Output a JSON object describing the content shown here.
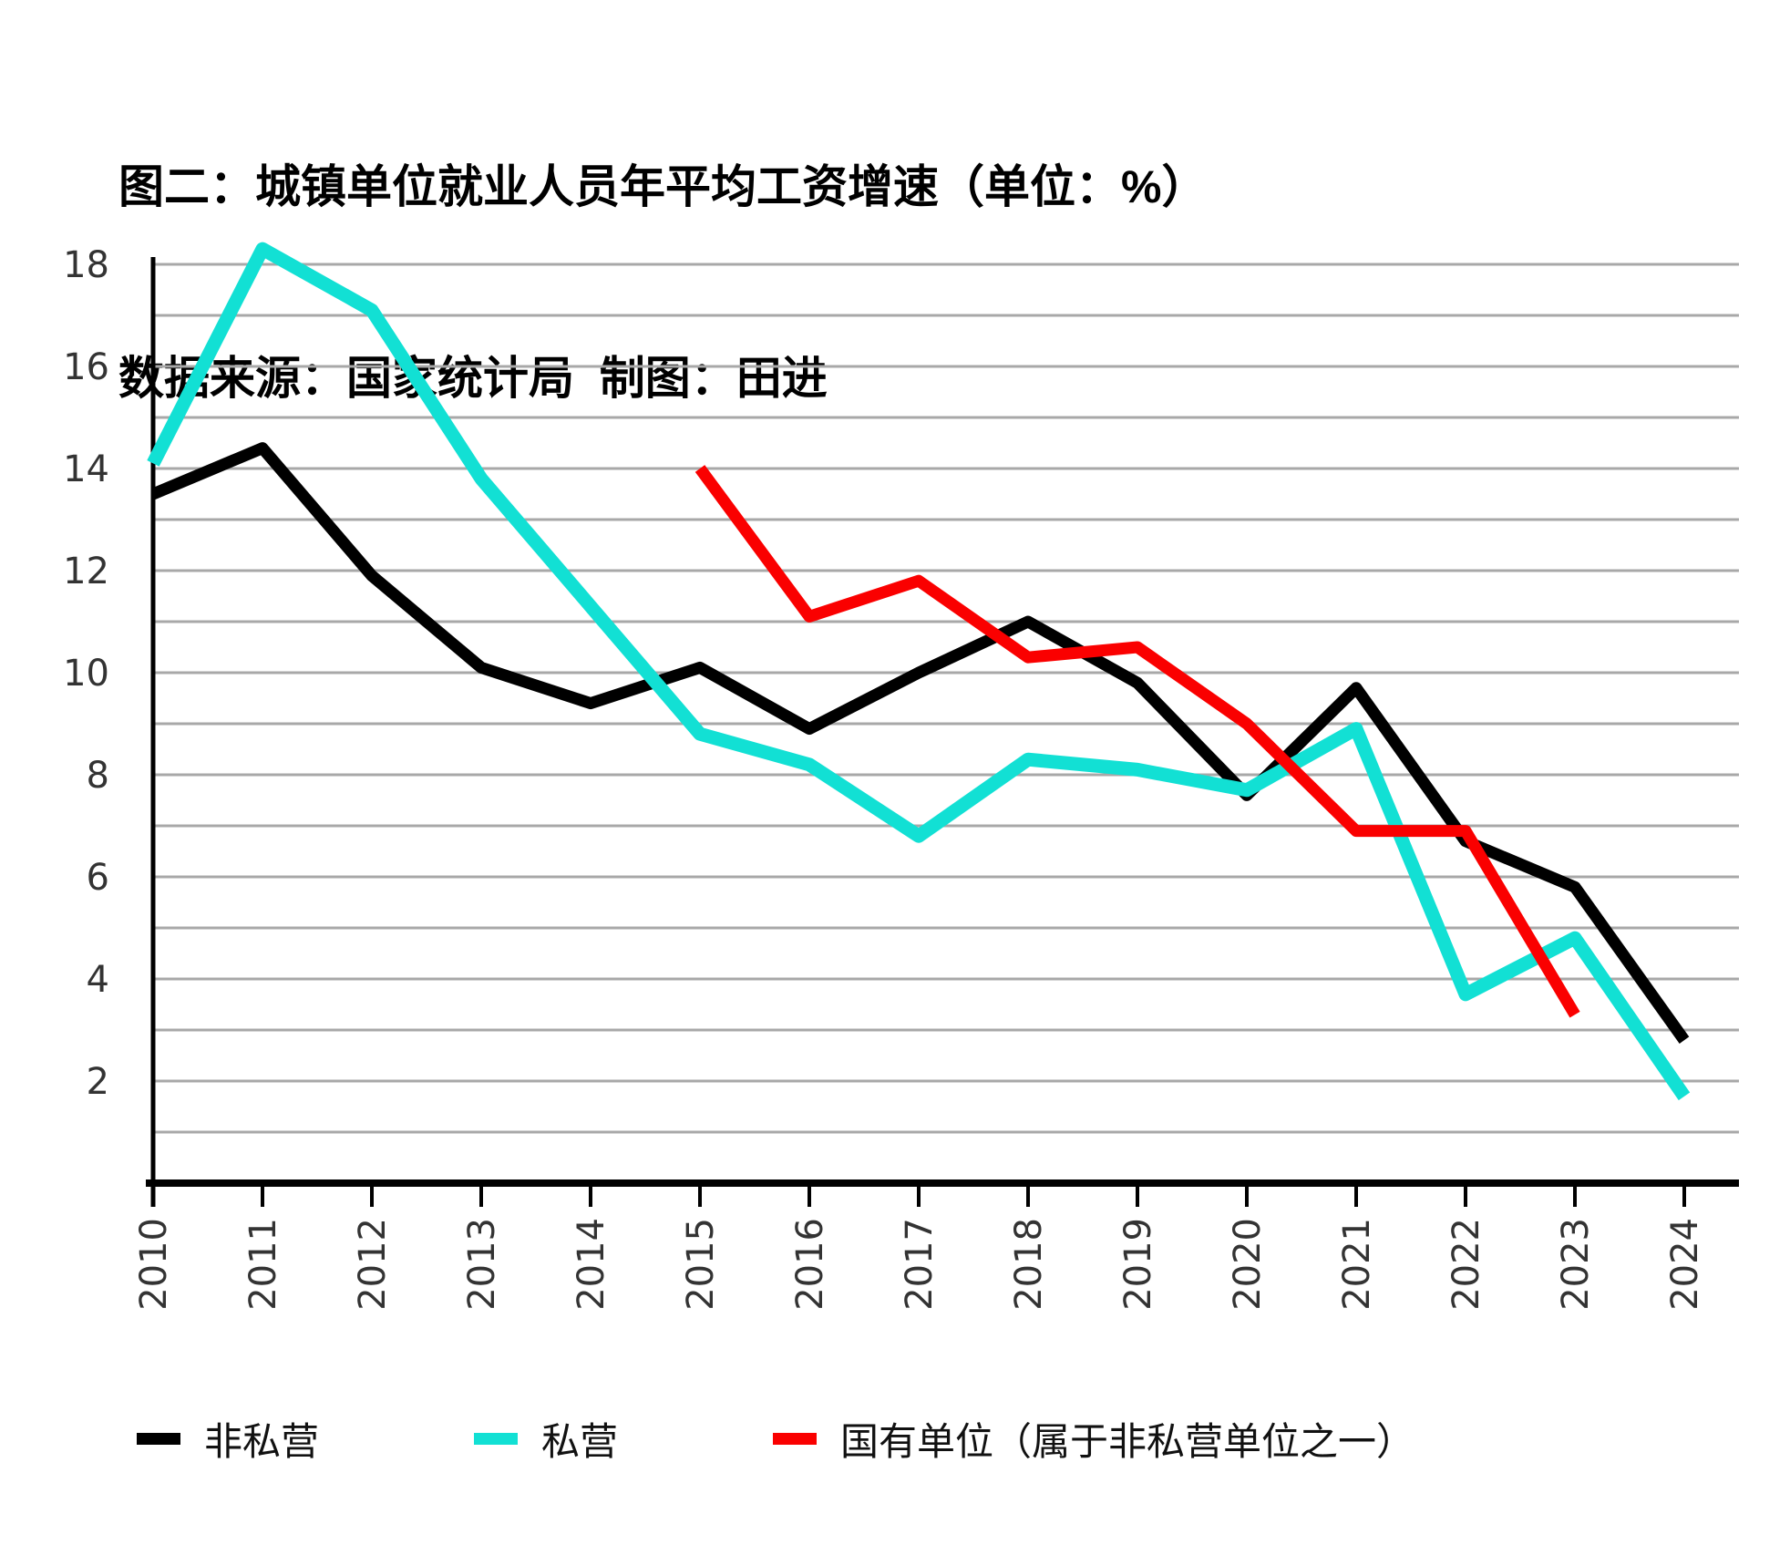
{
  "title": "图二：城镇单位就业人员年平均工资增速（单位：%）",
  "subtitle": "数据来源：国家统计局  制图：田进",
  "legend": {
    "items": [
      {
        "label": "非私营",
        "color": "#000000"
      },
      {
        "label": "私营",
        "color": "#12E0D4"
      },
      {
        "label": "国有单位（属于非私营单位之一）",
        "color": "#FA0000"
      }
    ]
  },
  "colors": {
    "background": "#ffffff",
    "grid": "#a8a8a8",
    "axis": "#000000",
    "tick_label": "#333333",
    "black_series": "#000000",
    "cyan_series": "#12E0D4",
    "red_series": "#FA0000"
  },
  "chart_data": {
    "type": "line",
    "title": "图二：城镇单位就业人员年平均工资增速（单位：%）",
    "source_note": "数据来源：国家统计局  制图：田进",
    "x": [
      2010,
      2011,
      2012,
      2013,
      2014,
      2015,
      2016,
      2017,
      2018,
      2019,
      2020,
      2021,
      2022,
      2023,
      2024
    ],
    "series": [
      {
        "name": "非私营",
        "color": "#000000",
        "values": [
          13.5,
          14.4,
          11.9,
          10.1,
          9.4,
          10.1,
          8.9,
          10.0,
          11.0,
          9.8,
          7.6,
          9.7,
          6.7,
          5.8,
          2.8
        ]
      },
      {
        "name": "私营",
        "color": "#12E0D4",
        "values": [
          14.1,
          18.3,
          17.1,
          13.8,
          11.3,
          8.8,
          8.2,
          6.8,
          8.3,
          8.1,
          7.7,
          8.9,
          3.7,
          4.8,
          1.7
        ]
      },
      {
        "name": "国有单位（属于非私营单位之一）",
        "color": "#FA0000",
        "values": [
          null,
          null,
          null,
          null,
          null,
          14.0,
          11.1,
          11.8,
          10.3,
          10.5,
          9.0,
          6.9,
          6.9,
          3.3,
          null
        ]
      }
    ],
    "xlabel": "",
    "ylabel": "",
    "ylim": [
      0,
      18
    ],
    "grid_step": 1,
    "y_tick_labels": [
      "2",
      "4",
      "6",
      "8",
      "10",
      "12",
      "14",
      "16",
      "18"
    ],
    "grid": "on",
    "legend_position": "bottom"
  }
}
